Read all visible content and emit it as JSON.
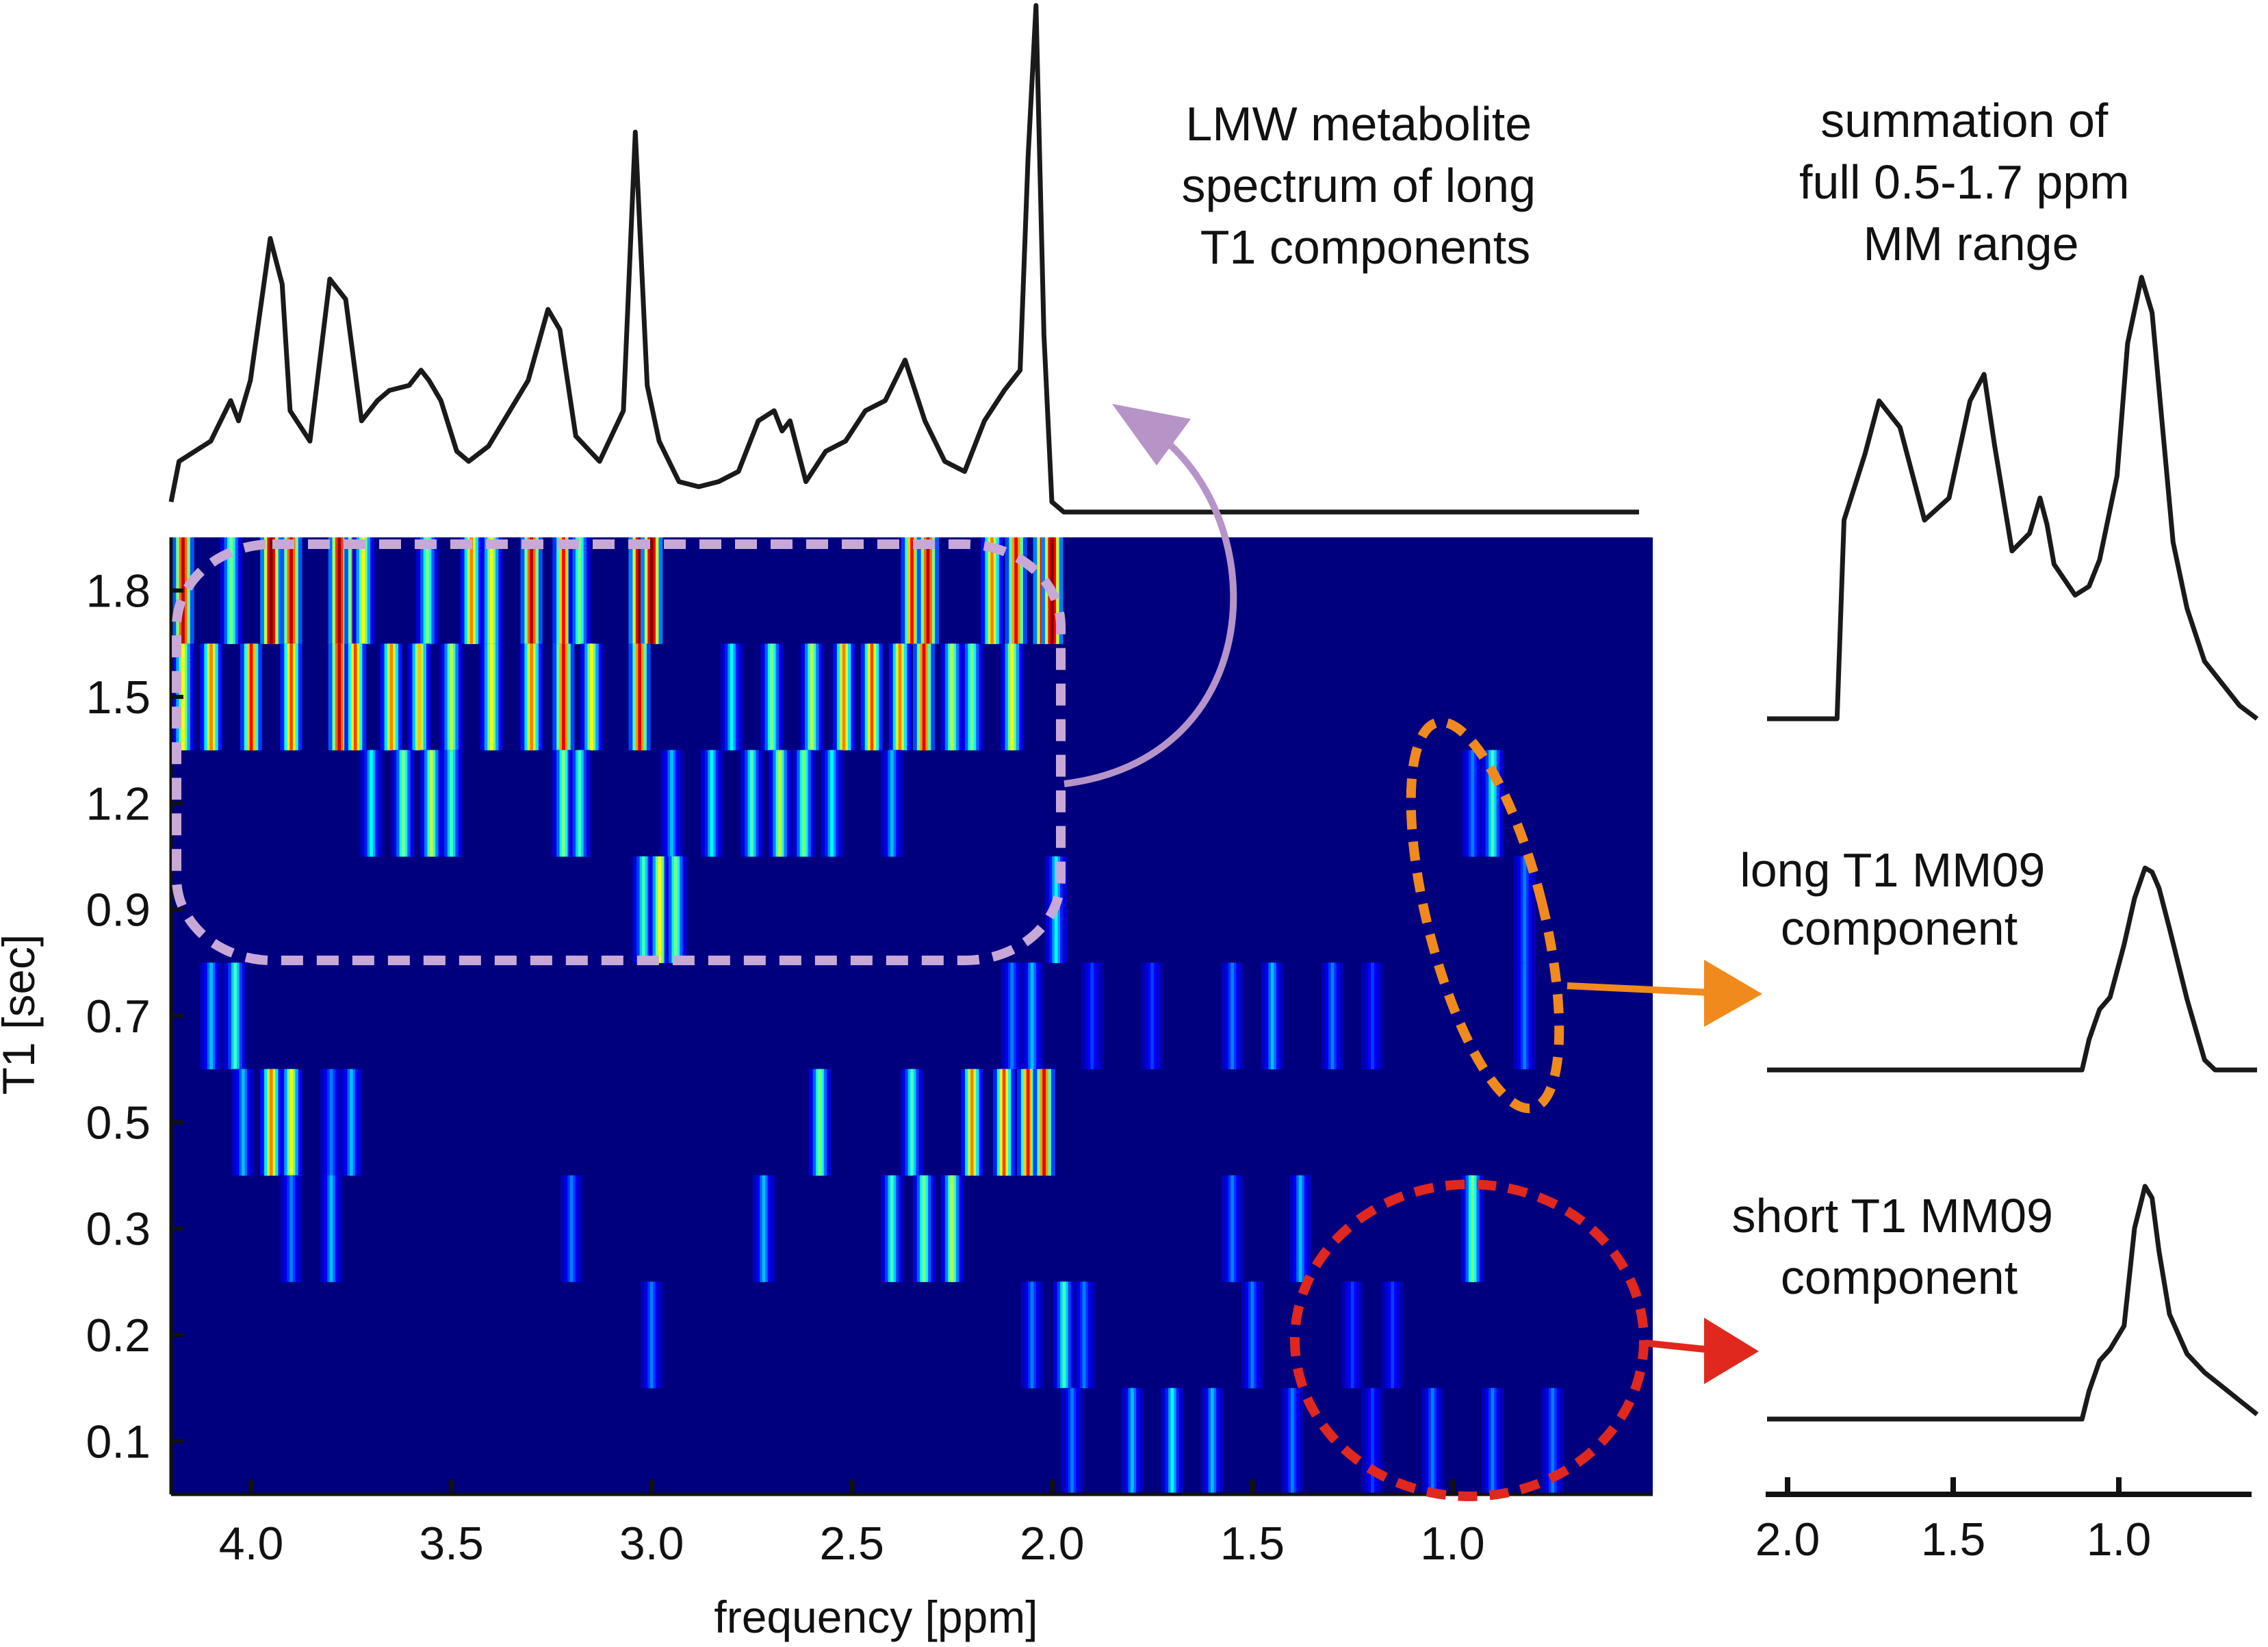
{
  "chart_data": [
    {
      "type": "heatmap",
      "xlabel": "frequency [ppm]",
      "ylabel": "T1 [sec]",
      "xlim": [
        4.2,
        0.5
      ],
      "x_ticks": [
        "4.0",
        "3.5",
        "3.0",
        "2.5",
        "2.0",
        "1.5",
        "1.0"
      ],
      "x_tick_values": [
        4.0,
        3.5,
        3.0,
        2.5,
        2.0,
        1.5,
        1.0
      ],
      "y_ticks": [
        "1.8",
        "1.5",
        "1.2",
        "0.9",
        "0.7",
        "0.5",
        "0.3",
        "0.2",
        "0.1"
      ],
      "colormap": [
        "#00007f",
        "#0000ff",
        "#00ffff",
        "#ffff00",
        "#ff0000",
        "#7f0000"
      ],
      "intensity_scale": [
        0,
        1
      ],
      "rows": [
        {
          "t1": "1.8",
          "bands": [
            [
              4.17,
              0.9
            ],
            [
              4.05,
              0.5
            ],
            [
              3.95,
              1.0
            ],
            [
              3.9,
              0.9
            ],
            [
              3.78,
              0.95
            ],
            [
              3.74,
              0.9
            ],
            [
              3.72,
              0.6
            ],
            [
              3.56,
              0.5
            ],
            [
              3.45,
              0.7
            ],
            [
              3.4,
              0.6
            ],
            [
              3.3,
              0.9
            ],
            [
              3.22,
              0.8
            ],
            [
              3.18,
              0.5
            ],
            [
              3.03,
              1.0
            ],
            [
              3.0,
              1.0
            ],
            [
              2.35,
              0.8
            ],
            [
              2.31,
              0.9
            ],
            [
              2.15,
              0.7
            ],
            [
              2.09,
              0.85
            ],
            [
              2.02,
              1.0
            ],
            [
              2.0,
              1.0
            ]
          ]
        },
        {
          "t1": "1.5",
          "bands": [
            [
              4.17,
              0.6
            ],
            [
              4.1,
              0.7
            ],
            [
              4.0,
              0.8
            ],
            [
              3.9,
              0.75
            ],
            [
              3.78,
              0.9
            ],
            [
              3.74,
              0.75
            ],
            [
              3.65,
              0.7
            ],
            [
              3.58,
              0.65
            ],
            [
              3.5,
              0.55
            ],
            [
              3.4,
              0.6
            ],
            [
              3.3,
              0.7
            ],
            [
              3.22,
              0.85
            ],
            [
              3.15,
              0.6
            ],
            [
              3.03,
              0.85
            ],
            [
              2.8,
              0.4
            ],
            [
              2.7,
              0.5
            ],
            [
              2.6,
              0.55
            ],
            [
              2.52,
              0.7
            ],
            [
              2.45,
              0.75
            ],
            [
              2.38,
              0.7
            ],
            [
              2.32,
              0.85
            ],
            [
              2.25,
              0.55
            ],
            [
              2.2,
              0.5
            ],
            [
              2.1,
              0.6
            ]
          ]
        },
        {
          "t1": "1.2",
          "bands": [
            [
              3.7,
              0.4
            ],
            [
              3.62,
              0.5
            ],
            [
              3.55,
              0.55
            ],
            [
              3.5,
              0.45
            ],
            [
              3.22,
              0.5
            ],
            [
              3.18,
              0.45
            ],
            [
              2.95,
              0.35
            ],
            [
              2.85,
              0.4
            ],
            [
              2.75,
              0.45
            ],
            [
              2.68,
              0.55
            ],
            [
              2.62,
              0.5
            ],
            [
              2.55,
              0.4
            ],
            [
              2.4,
              0.35
            ],
            [
              0.95,
              0.3
            ],
            [
              0.9,
              0.45
            ]
          ]
        },
        {
          "t1": "0.9",
          "bands": [
            [
              3.02,
              0.45
            ],
            [
              2.98,
              0.6
            ],
            [
              2.94,
              0.5
            ],
            [
              1.99,
              0.4
            ],
            [
              0.82,
              0.3
            ]
          ]
        },
        {
          "t1": "0.7",
          "bands": [
            [
              4.1,
              0.35
            ],
            [
              4.04,
              0.45
            ],
            [
              2.1,
              0.3
            ],
            [
              2.05,
              0.35
            ],
            [
              1.9,
              0.25
            ],
            [
              1.75,
              0.25
            ],
            [
              1.55,
              0.3
            ],
            [
              1.45,
              0.35
            ],
            [
              1.3,
              0.3
            ],
            [
              1.2,
              0.25
            ],
            [
              0.82,
              0.3
            ]
          ]
        },
        {
          "t1": "0.5",
          "bands": [
            [
              4.02,
              0.35
            ],
            [
              3.95,
              0.7
            ],
            [
              3.9,
              0.6
            ],
            [
              3.8,
              0.3
            ],
            [
              3.75,
              0.35
            ],
            [
              2.58,
              0.5
            ],
            [
              2.35,
              0.45
            ],
            [
              2.2,
              0.7
            ],
            [
              2.12,
              0.75
            ],
            [
              2.06,
              0.8
            ],
            [
              2.02,
              0.85
            ]
          ]
        },
        {
          "t1": "0.3",
          "bands": [
            [
              3.9,
              0.3
            ],
            [
              3.8,
              0.35
            ],
            [
              3.2,
              0.3
            ],
            [
              2.72,
              0.35
            ],
            [
              2.4,
              0.45
            ],
            [
              2.32,
              0.5
            ],
            [
              2.25,
              0.55
            ],
            [
              1.55,
              0.3
            ],
            [
              1.38,
              0.35
            ],
            [
              0.95,
              0.5
            ]
          ]
        },
        {
          "t1": "0.2",
          "bands": [
            [
              3.0,
              0.3
            ],
            [
              2.05,
              0.3
            ],
            [
              1.97,
              0.45
            ],
            [
              1.92,
              0.3
            ],
            [
              1.5,
              0.3
            ],
            [
              1.25,
              0.25
            ],
            [
              1.15,
              0.25
            ]
          ]
        },
        {
          "t1": "0.1",
          "bands": [
            [
              1.95,
              0.3
            ],
            [
              1.8,
              0.35
            ],
            [
              1.7,
              0.4
            ],
            [
              1.6,
              0.35
            ],
            [
              1.4,
              0.3
            ],
            [
              1.2,
              0.25
            ],
            [
              1.05,
              0.3
            ],
            [
              0.9,
              0.3
            ],
            [
              0.75,
              0.3
            ]
          ]
        }
      ]
    },
    {
      "type": "line",
      "title": "LMW metabolite spectrum of long T1 components",
      "x_units": "ppm",
      "x": [
        4.2,
        4.18,
        4.1,
        4.05,
        4.03,
        4.0,
        3.95,
        3.92,
        3.9,
        3.85,
        3.8,
        3.76,
        3.72,
        3.68,
        3.65,
        3.6,
        3.57,
        3.55,
        3.52,
        3.48,
        3.45,
        3.4,
        3.3,
        3.25,
        3.22,
        3.18,
        3.12,
        3.06,
        3.03,
        3.0,
        2.97,
        2.92,
        2.87,
        2.82,
        2.77,
        2.72,
        2.68,
        2.66,
        2.64,
        2.6,
        2.55,
        2.5,
        2.45,
        2.4,
        2.35,
        2.3,
        2.25,
        2.2,
        2.15,
        2.1,
        2.06,
        2.04,
        2.02,
        2.0,
        1.98,
        1.95,
        1.9,
        1.0,
        0.5
      ],
      "y": [
        0.02,
        0.1,
        0.14,
        0.22,
        0.18,
        0.26,
        0.54,
        0.45,
        0.2,
        0.14,
        0.46,
        0.42,
        0.18,
        0.22,
        0.24,
        0.25,
        0.28,
        0.26,
        0.22,
        0.12,
        0.1,
        0.13,
        0.26,
        0.4,
        0.36,
        0.15,
        0.1,
        0.2,
        0.75,
        0.25,
        0.14,
        0.06,
        0.05,
        0.06,
        0.08,
        0.18,
        0.2,
        0.16,
        0.18,
        0.06,
        0.12,
        0.14,
        0.2,
        0.22,
        0.3,
        0.18,
        0.1,
        0.08,
        0.18,
        0.24,
        0.28,
        0.7,
        1.0,
        0.35,
        0.02,
        0.0,
        0.0,
        0.0,
        0.0
      ],
      "y_scale": "arbitrary"
    },
    {
      "type": "line",
      "title": "summation of full 0.5-1.7 ppm MM range",
      "x_units": "ppm",
      "x": [
        2.0,
        1.8,
        1.78,
        1.72,
        1.68,
        1.62,
        1.55,
        1.48,
        1.42,
        1.38,
        1.35,
        1.3,
        1.25,
        1.22,
        1.2,
        1.18,
        1.12,
        1.08,
        1.05,
        1.0,
        0.97,
        0.93,
        0.9,
        0.87,
        0.84,
        0.8,
        0.75,
        0.7,
        0.65,
        0.6
      ],
      "y": [
        0.0,
        0.0,
        0.45,
        0.6,
        0.72,
        0.66,
        0.45,
        0.5,
        0.72,
        0.78,
        0.62,
        0.38,
        0.42,
        0.5,
        0.44,
        0.35,
        0.28,
        0.3,
        0.36,
        0.55,
        0.85,
        1.0,
        0.92,
        0.66,
        0.4,
        0.25,
        0.13,
        0.08,
        0.03,
        0.0
      ]
    },
    {
      "type": "line",
      "title": "long T1 MM09 component",
      "x_units": "ppm",
      "x": [
        2.0,
        1.1,
        1.08,
        1.05,
        1.02,
        0.98,
        0.95,
        0.92,
        0.9,
        0.88,
        0.85,
        0.8,
        0.75,
        0.72,
        0.6
      ],
      "y": [
        0.0,
        0.0,
        0.15,
        0.3,
        0.36,
        0.62,
        0.85,
        1.0,
        0.98,
        0.9,
        0.7,
        0.35,
        0.05,
        0.0,
        0.0
      ]
    },
    {
      "type": "line",
      "title": "short T1 MM09 component",
      "x_units": "ppm",
      "x": [
        2.0,
        1.1,
        1.08,
        1.05,
        1.02,
        0.98,
        0.95,
        0.92,
        0.9,
        0.88,
        0.85,
        0.8,
        0.75,
        0.7,
        0.65,
        0.6
      ],
      "y": [
        0.0,
        0.0,
        0.12,
        0.25,
        0.3,
        0.4,
        0.82,
        1.0,
        0.95,
        0.72,
        0.45,
        0.28,
        0.2,
        0.14,
        0.08,
        0.02
      ]
    }
  ],
  "inset_axis": {
    "x_ticks": [
      "2.0",
      "1.5",
      "1.0"
    ],
    "x_tick_values": [
      2.0,
      1.5,
      1.0
    ],
    "xlim": [
      2.0,
      0.6
    ]
  },
  "annotations": {
    "lmw_title_lines": [
      "LMW metabolite",
      "spectrum of long",
      "T1 components"
    ],
    "sum_title_lines": [
      "summation of",
      "full 0.5-1.7 ppm",
      "MM range"
    ],
    "long_title_lines": [
      "long T1 MM09",
      "component"
    ],
    "short_title_lines": [
      "short T1 MM09",
      "component"
    ]
  },
  "colors": {
    "lmw_box": "#c8a8d6",
    "lmw_arrow": "#b694c8",
    "long_ellipse": "#f08a1c",
    "short_ellipse": "#e0281e",
    "trace": "#1a1a1a"
  }
}
